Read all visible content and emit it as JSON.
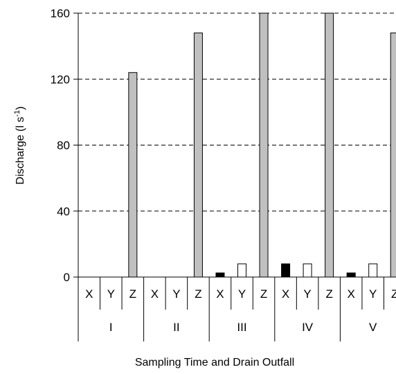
{
  "chart_data": {
    "type": "bar",
    "ylabel": "Discharge (l s",
    "ylabel_sup": "-1",
    "ylabel_close": ")",
    "xlabel": "Sampling Time and Drain Outfall",
    "ylim": [
      0,
      160
    ],
    "yticks": [
      0,
      40,
      80,
      120,
      160
    ],
    "grid": "horizontal dashed",
    "groups": [
      "I",
      "II",
      "III",
      "IV",
      "V"
    ],
    "outfalls": [
      "X",
      "Y",
      "Z"
    ],
    "outfall_colors": {
      "X": "#000000",
      "Y": "#ffffff",
      "Z": "#c0c0c0"
    },
    "values": [
      [
        0,
        0,
        124
      ],
      [
        0,
        0,
        148
      ],
      [
        2.5,
        8,
        160
      ],
      [
        8,
        8,
        160
      ],
      [
        2.5,
        8,
        148
      ]
    ]
  }
}
